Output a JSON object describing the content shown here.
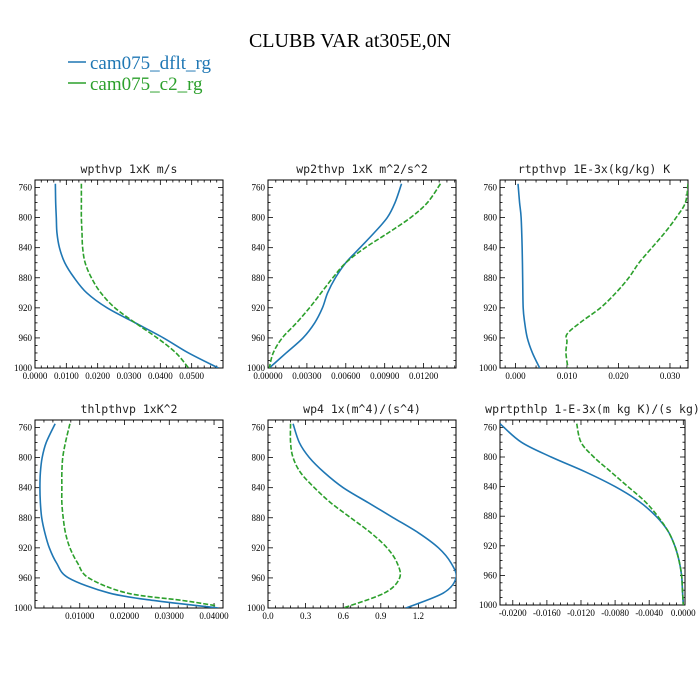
{
  "title": "CLUBB VAR at305E,0N",
  "legend": [
    {
      "name": "cam075_dflt_rg",
      "color": "#1f77b4",
      "dash": "solid"
    },
    {
      "name": "cam075_c2_rg",
      "color": "#2ca02c",
      "dash": "dashed"
    }
  ],
  "colors": {
    "dflt": "#1f77b4",
    "c2": "#2ca02c"
  },
  "chart_data": [
    {
      "type": "line",
      "title": "wpthvp  1xK m/s",
      "xlim": [
        0,
        0.06
      ],
      "ylim": [
        1000,
        750
      ],
      "xticks": [
        0,
        0.01,
        0.02,
        0.03,
        0.04,
        0.05
      ],
      "xticklabels": [
        "0.0000",
        "0.0100",
        "0.0200",
        "0.0300",
        "0.0400",
        "0.0500"
      ],
      "yticks": [
        760,
        800,
        840,
        880,
        920,
        960,
        1000
      ],
      "series": [
        {
          "name": "cam075_dflt_rg",
          "points": [
            [
              0.0065,
              755
            ],
            [
              0.0066,
              780
            ],
            [
              0.0068,
              800
            ],
            [
              0.007,
              820
            ],
            [
              0.0078,
              840
            ],
            [
              0.0095,
              860
            ],
            [
              0.0125,
              880
            ],
            [
              0.0165,
              900
            ],
            [
              0.023,
              920
            ],
            [
              0.032,
              940
            ],
            [
              0.041,
              960
            ],
            [
              0.049,
              980
            ],
            [
              0.0585,
              1000
            ]
          ]
        },
        {
          "name": "cam075_c2_rg",
          "points": [
            [
              0.0148,
              755
            ],
            [
              0.0148,
              780
            ],
            [
              0.0148,
              800
            ],
            [
              0.015,
              820
            ],
            [
              0.0152,
              840
            ],
            [
              0.016,
              860
            ],
            [
              0.018,
              880
            ],
            [
              0.021,
              900
            ],
            [
              0.0255,
              920
            ],
            [
              0.032,
              940
            ],
            [
              0.039,
              960
            ],
            [
              0.045,
              980
            ],
            [
              0.049,
              1000
            ]
          ]
        }
      ]
    },
    {
      "type": "line",
      "title": "wp2thvp  1xK m^2/s^2",
      "xlim": [
        0,
        0.0145
      ],
      "ylim": [
        1000,
        750
      ],
      "xticks": [
        0,
        0.003,
        0.006,
        0.009,
        0.012
      ],
      "xticklabels": [
        "0.00000",
        "0.00300",
        "0.00600",
        "0.00900",
        "0.01200"
      ],
      "yticks": [
        760,
        800,
        840,
        880,
        920,
        960,
        1000
      ],
      "series": [
        {
          "name": "cam075_dflt_rg",
          "points": [
            [
              0.0103,
              755
            ],
            [
              0.0098,
              780
            ],
            [
              0.0092,
              800
            ],
            [
              0.0082,
              820
            ],
            [
              0.0071,
              840
            ],
            [
              0.006,
              860
            ],
            [
              0.0052,
              880
            ],
            [
              0.0046,
              900
            ],
            [
              0.0042,
              920
            ],
            [
              0.0036,
              940
            ],
            [
              0.0027,
              960
            ],
            [
              0.0014,
              980
            ],
            [
              0.0001,
              1000
            ]
          ]
        },
        {
          "name": "cam075_c2_rg",
          "points": [
            [
              0.0133,
              755
            ],
            [
              0.0123,
              780
            ],
            [
              0.011,
              800
            ],
            [
              0.0093,
              820
            ],
            [
              0.0075,
              840
            ],
            [
              0.006,
              860
            ],
            [
              0.005,
              880
            ],
            [
              0.0041,
              900
            ],
            [
              0.0032,
              920
            ],
            [
              0.0022,
              940
            ],
            [
              0.0011,
              960
            ],
            [
              0.0004,
              980
            ],
            [
              0.0001,
              1000
            ]
          ]
        }
      ]
    },
    {
      "type": "line",
      "title": "rtpthvp  1E-3x(kg/kg) K",
      "xlim": [
        -0.003,
        0.0335
      ],
      "ylim": [
        1000,
        750
      ],
      "xticks": [
        0,
        0.01,
        0.02,
        0.03
      ],
      "xticklabels": [
        "0.000",
        "0.010",
        "0.020",
        "0.030"
      ],
      "yticks": [
        760,
        800,
        840,
        880,
        920,
        960,
        1000
      ],
      "series": [
        {
          "name": "cam075_dflt_rg",
          "points": [
            [
              0.0005,
              755
            ],
            [
              0.0008,
              780
            ],
            [
              0.0011,
              800
            ],
            [
              0.0013,
              840
            ],
            [
              0.0014,
              880
            ],
            [
              0.0015,
              920
            ],
            [
              0.0018,
              940
            ],
            [
              0.0023,
              960
            ],
            [
              0.0033,
              980
            ],
            [
              0.0047,
              1000
            ]
          ]
        },
        {
          "name": "cam075_c2_rg",
          "points": [
            [
              0.0335,
              755
            ],
            [
              0.033,
              780
            ],
            [
              0.0312,
              800
            ],
            [
              0.029,
              820
            ],
            [
              0.0265,
              840
            ],
            [
              0.024,
              860
            ],
            [
              0.022,
              880
            ],
            [
              0.0195,
              900
            ],
            [
              0.0165,
              920
            ],
            [
              0.0125,
              940
            ],
            [
              0.01,
              955
            ],
            [
              0.01,
              965
            ],
            [
              0.0098,
              980
            ],
            [
              0.0102,
              1000
            ]
          ]
        }
      ]
    },
    {
      "type": "line",
      "title": "thlpthvp  1xK^2",
      "xlim": [
        0,
        0.042
      ],
      "ylim": [
        1000,
        750
      ],
      "xticks": [
        0.01,
        0.02,
        0.03,
        0.04
      ],
      "xticklabels": [
        "0.01000",
        "0.02000",
        "0.03000",
        "0.04000"
      ],
      "yticks": [
        760,
        800,
        840,
        880,
        920,
        960,
        1000
      ],
      "series": [
        {
          "name": "cam075_dflt_rg",
          "points": [
            [
              0.0045,
              755
            ],
            [
              0.0025,
              780
            ],
            [
              0.0016,
              800
            ],
            [
              0.0012,
              820
            ],
            [
              0.0011,
              840
            ],
            [
              0.0012,
              860
            ],
            [
              0.0015,
              880
            ],
            [
              0.0022,
              900
            ],
            [
              0.0032,
              920
            ],
            [
              0.0048,
              940
            ],
            [
              0.0075,
              960
            ],
            [
              0.0165,
              980
            ],
            [
              0.0265,
              990
            ],
            [
              0.041,
              1000
            ]
          ]
        },
        {
          "name": "cam075_c2_rg",
          "points": [
            [
              0.0078,
              755
            ],
            [
              0.0068,
              780
            ],
            [
              0.0062,
              800
            ],
            [
              0.006,
              820
            ],
            [
              0.006,
              840
            ],
            [
              0.006,
              860
            ],
            [
              0.0063,
              880
            ],
            [
              0.0068,
              900
            ],
            [
              0.0078,
              920
            ],
            [
              0.0095,
              940
            ],
            [
              0.012,
              960
            ],
            [
              0.0205,
              980
            ],
            [
              0.033,
              990
            ],
            [
              0.0405,
              997
            ]
          ]
        }
      ]
    },
    {
      "type": "line",
      "title": "wp4  1x(m^4)/(s^4)",
      "xlim": [
        0,
        1.5
      ],
      "ylim": [
        1000,
        750
      ],
      "xticks": [
        0,
        0.3,
        0.6,
        0.9,
        1.2
      ],
      "xticklabels": [
        "0.0",
        "0.3",
        "0.6",
        "0.9",
        "1.2"
      ],
      "yticks": [
        760,
        800,
        840,
        880,
        920,
        960,
        1000
      ],
      "series": [
        {
          "name": "cam075_dflt_rg",
          "points": [
            [
              0.2,
              755
            ],
            [
              0.25,
              780
            ],
            [
              0.33,
              800
            ],
            [
              0.45,
              820
            ],
            [
              0.6,
              840
            ],
            [
              0.8,
              860
            ],
            [
              1.0,
              880
            ],
            [
              1.2,
              900
            ],
            [
              1.36,
              920
            ],
            [
              1.46,
              940
            ],
            [
              1.5,
              960
            ],
            [
              1.4,
              980
            ],
            [
              1.1,
              1000
            ]
          ]
        },
        {
          "name": "cam075_c2_rg",
          "points": [
            [
              0.18,
              755
            ],
            [
              0.18,
              780
            ],
            [
              0.2,
              800
            ],
            [
              0.26,
              820
            ],
            [
              0.37,
              840
            ],
            [
              0.5,
              860
            ],
            [
              0.66,
              880
            ],
            [
              0.82,
              900
            ],
            [
              0.95,
              920
            ],
            [
              1.03,
              940
            ],
            [
              1.05,
              960
            ],
            [
              0.93,
              980
            ],
            [
              0.6,
              1000
            ]
          ]
        }
      ]
    },
    {
      "type": "line",
      "title": "wprtpthlp  1-E-3x(m kg K)/(s kg)",
      "xlim": [
        -0.0215,
        0.0002
      ],
      "ylim": [
        1000,
        750
      ],
      "xticks": [
        -0.02,
        -0.016,
        -0.012,
        -0.008,
        -0.004,
        0
      ],
      "xticklabels": [
        "-0.0200",
        "-0.0160",
        "-0.0120",
        "-0.0080",
        "-0.0040",
        "0.0000"
      ],
      "yticks": [
        760,
        800,
        840,
        880,
        920,
        960,
        1000
      ],
      "series": [
        {
          "name": "cam075_dflt_rg",
          "points": [
            [
              -0.0215,
              755
            ],
            [
              -0.019,
              780
            ],
            [
              -0.0155,
              800
            ],
            [
              -0.0115,
              820
            ],
            [
              -0.008,
              840
            ],
            [
              -0.0052,
              860
            ],
            [
              -0.0032,
              880
            ],
            [
              -0.0018,
              900
            ],
            [
              -0.001,
              920
            ],
            [
              -0.0005,
              940
            ],
            [
              -0.0002,
              960
            ],
            [
              -0.0001,
              980
            ],
            [
              0,
              1000
            ]
          ]
        },
        {
          "name": "cam075_c2_rg",
          "points": [
            [
              -0.0125,
              755
            ],
            [
              -0.012,
              780
            ],
            [
              -0.0105,
              800
            ],
            [
              -0.0085,
              820
            ],
            [
              -0.0065,
              840
            ],
            [
              -0.0045,
              860
            ],
            [
              -0.003,
              880
            ],
            [
              -0.0018,
              900
            ],
            [
              -0.001,
              920
            ],
            [
              -0.0005,
              940
            ],
            [
              -0.0002,
              960
            ],
            [
              -0.0001,
              980
            ],
            [
              0,
              1000
            ]
          ]
        }
      ]
    }
  ]
}
